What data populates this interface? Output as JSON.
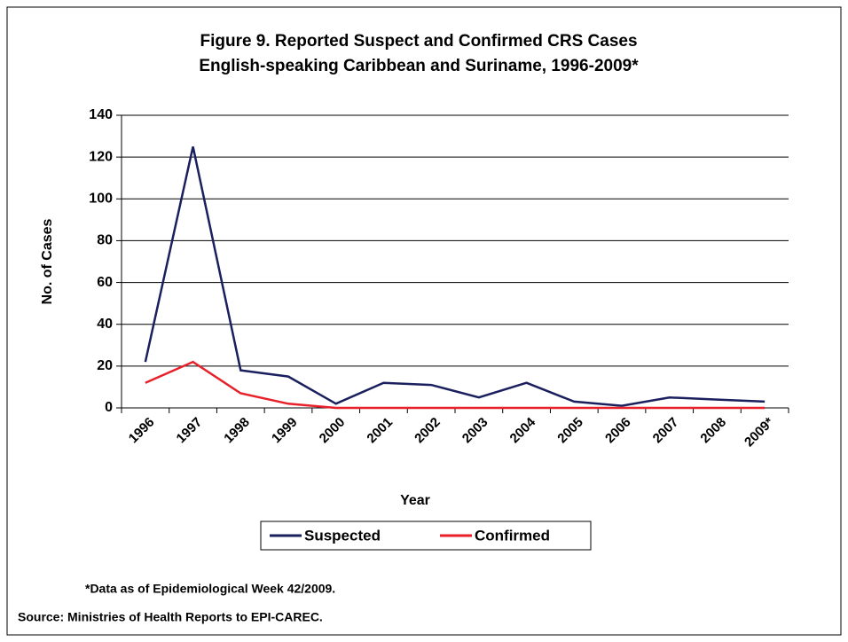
{
  "chart_data": {
    "type": "line",
    "title": "Figure 9. Reported Suspect and Confirmed CRS Cases",
    "subtitle": "English-speaking Caribbean and Suriname, 1996-2009*",
    "x_label": "Year",
    "y_label": "No. of Cases",
    "categories": [
      "1996",
      "1997",
      "1998",
      "1999",
      "2000",
      "2001",
      "2002",
      "2003",
      "2004",
      "2005",
      "2006",
      "2007",
      "2008",
      "2009*"
    ],
    "series": [
      {
        "name": "Suspected",
        "color": "#1a1f5e",
        "values": [
          22,
          125,
          18,
          15,
          2,
          12,
          11,
          5,
          12,
          3,
          1,
          5,
          4,
          3
        ]
      },
      {
        "name": "Confirmed",
        "color": "#e8202a",
        "values": [
          12,
          22,
          7,
          2,
          0,
          0,
          0,
          0,
          0,
          0,
          0,
          0,
          0,
          0
        ]
      }
    ],
    "ylim": [
      0,
      140
    ],
    "yticks": [
      0,
      20,
      40,
      60,
      80,
      100,
      120,
      140
    ],
    "grid": true,
    "legend": "bottom",
    "annotations": [
      "*Data as of Epidemiological Week 42/2009.",
      "Source: Ministries of Health Reports to EPI-CAREC."
    ]
  }
}
